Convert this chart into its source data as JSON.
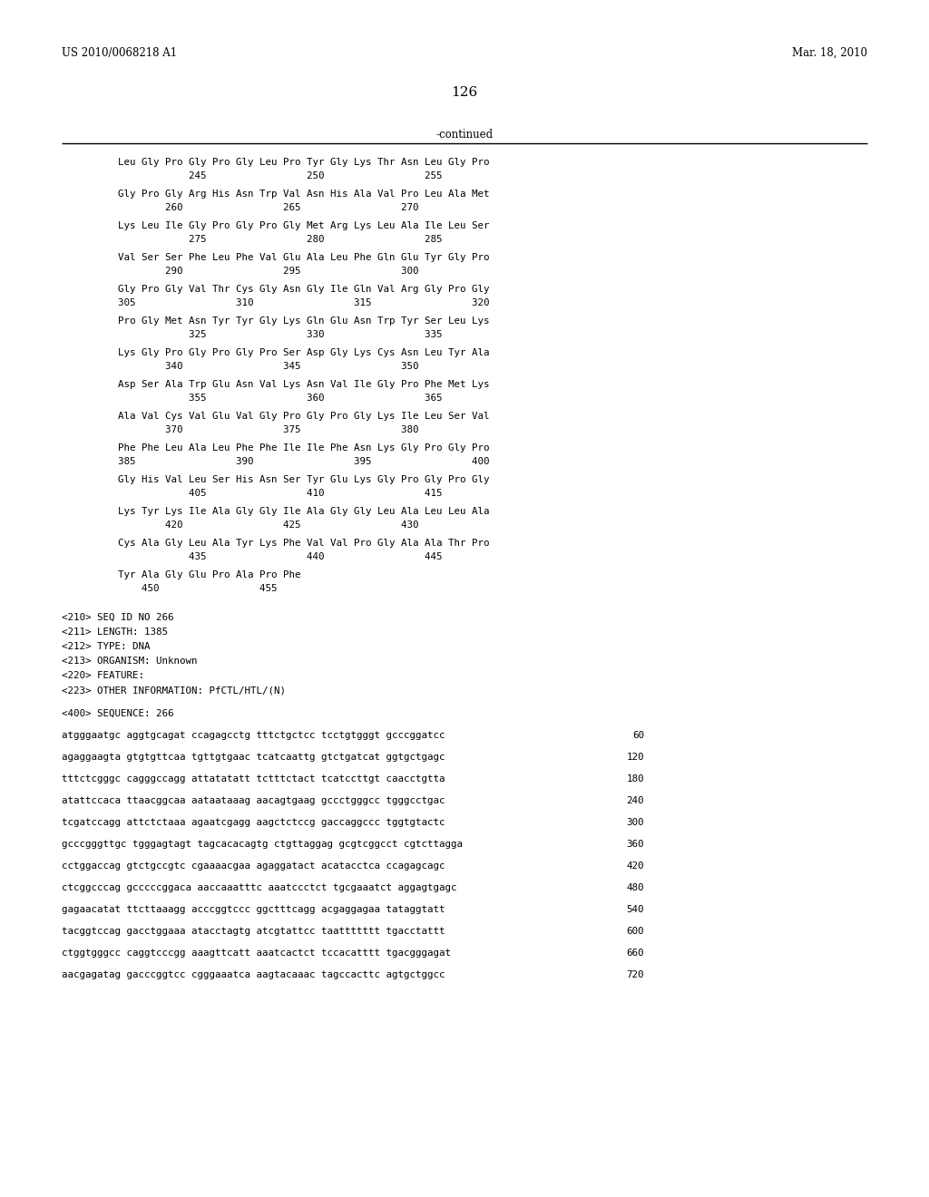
{
  "header_left": "US 2010/0068218 A1",
  "header_right": "Mar. 18, 2010",
  "page_number": "126",
  "continued_label": "-continued",
  "background_color": "#ffffff",
  "text_color": "#000000",
  "protein_lines": [
    [
      "Leu Gly Pro Gly Pro Gly Leu Pro Tyr Gly Lys Thr Asn Leu Gly Pro",
      "            245                 250                 255"
    ],
    [
      "Gly Pro Gly Arg His Asn Trp Val Asn His Ala Val Pro Leu Ala Met",
      "        260                 265                 270"
    ],
    [
      "Lys Leu Ile Gly Pro Gly Pro Gly Met Arg Lys Leu Ala Ile Leu Ser",
      "            275                 280                 285"
    ],
    [
      "Val Ser Ser Phe Leu Phe Val Glu Ala Leu Phe Gln Glu Tyr Gly Pro",
      "        290                 295                 300"
    ],
    [
      "Gly Pro Gly Val Thr Cys Gly Asn Gly Ile Gln Val Arg Gly Pro Gly",
      "305                 310                 315                 320"
    ],
    [
      "Pro Gly Met Asn Tyr Tyr Gly Lys Gln Glu Asn Trp Tyr Ser Leu Lys",
      "            325                 330                 335"
    ],
    [
      "Lys Gly Pro Gly Pro Gly Pro Ser Asp Gly Lys Cys Asn Leu Tyr Ala",
      "        340                 345                 350"
    ],
    [
      "Asp Ser Ala Trp Glu Asn Val Lys Asn Val Ile Gly Pro Phe Met Lys",
      "            355                 360                 365"
    ],
    [
      "Ala Val Cys Val Glu Val Gly Pro Gly Pro Gly Lys Ile Leu Ser Val",
      "        370                 375                 380"
    ],
    [
      "Phe Phe Leu Ala Leu Phe Phe Ile Ile Phe Asn Lys Gly Pro Gly Pro",
      "385                 390                 395                 400"
    ],
    [
      "Gly His Val Leu Ser His Asn Ser Tyr Glu Lys Gly Pro Gly Pro Gly",
      "            405                 410                 415"
    ],
    [
      "Lys Tyr Lys Ile Ala Gly Gly Ile Ala Gly Gly Leu Ala Leu Leu Ala",
      "        420                 425                 430"
    ],
    [
      "Cys Ala Gly Leu Ala Tyr Lys Phe Val Val Pro Gly Ala Ala Thr Pro",
      "            435                 440                 445"
    ],
    [
      "Tyr Ala Gly Glu Pro Ala Pro Phe",
      "    450                 455"
    ]
  ],
  "metadata_lines": [
    "<210> SEQ ID NO 266",
    "<211> LENGTH: 1385",
    "<212> TYPE: DNA",
    "<213> ORGANISM: Unknown",
    "<220> FEATURE:",
    "<223> OTHER INFORMATION: PfCTL/HTL/(N)"
  ],
  "sequence_label": "<400> SEQUENCE: 266",
  "dna_lines": [
    [
      "atgggaatgc aggtgcagat ccagagcctg tttctgctcc tcctgtgggt gcccggatcc",
      "60"
    ],
    [
      "agaggaagta gtgtgttcaa tgttgtgaac tcatcaattg gtctgatcat ggtgctgagc",
      "120"
    ],
    [
      "tttctcgggc cagggccagg attatatatt tctttctact tcatccttgt caacctgtta",
      "180"
    ],
    [
      "atattccaca ttaacggcaa aataataaag aacagtgaag gccctgggcc tgggcctgac",
      "240"
    ],
    [
      "tcgatccagg attctctaaa agaatcgagg aagctctccg gaccaggccc tggtgtactc",
      "300"
    ],
    [
      "gcccgggttgc tgggagtagt tagcacacagtg ctgttaggag gcgtcggcct cgtcttagga",
      "360"
    ],
    [
      "cctggaccag gtctgccgtc cgaaaacgaa agaggatact acatacctca ccagagcagc",
      "420"
    ],
    [
      "ctcggcccag gcccccggaca aaccaaatttc aaatccctct tgcgaaatct aggagtgagc",
      "480"
    ],
    [
      "gagaacatat ttcttaaagg acccggtccc ggctttcagg acgaggagaa tataggtatt",
      "540"
    ],
    [
      "tacggtccag gacctggaaa atacctagtg atcgtattcc taattttttt tgacctattt",
      "600"
    ],
    [
      "ctggtgggcc caggtcccgg aaagttcatt aaatcactct tccacatttt tgacgggagat",
      "660"
    ],
    [
      "aacgagatag gacccggtcc cgggaaatca aagtacaaac tagccacttc agtgctggcc",
      "720"
    ]
  ]
}
